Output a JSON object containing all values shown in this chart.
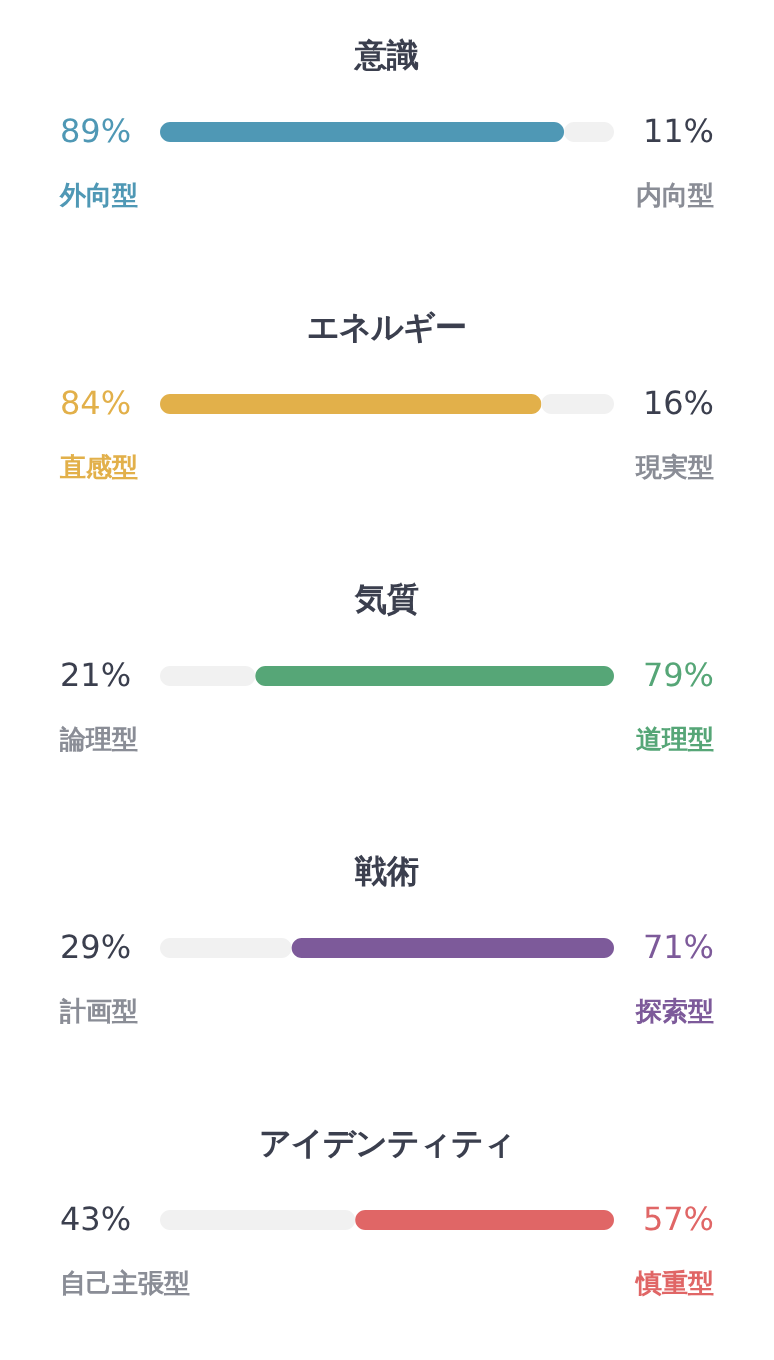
{
  "chart_data": [
    {
      "type": "bar",
      "orientation": "horizontal",
      "stacked": true,
      "title": "意識",
      "categories": [
        null
      ],
      "series": [
        {
          "name": "外向型",
          "color": "#4f98b5",
          "values": [
            89
          ],
          "value_labels": [
            "89%"
          ]
        },
        {
          "name": "内向型",
          "color": "#f1f1f1",
          "values": [
            11
          ],
          "value_labels": [
            "11%"
          ]
        }
      ]
    },
    {
      "type": "bar",
      "orientation": "horizontal",
      "stacked": true,
      "title": "エネルギー",
      "categories": [
        null
      ],
      "series": [
        {
          "name": "直感型",
          "color": "#e2b04a",
          "values": [
            84
          ],
          "value_labels": [
            "84%"
          ]
        },
        {
          "name": "現実型",
          "color": "#f1f1f1",
          "values": [
            16
          ],
          "value_labels": [
            "16%"
          ]
        }
      ]
    },
    {
      "type": "bar",
      "orientation": "horizontal",
      "stacked": true,
      "title": "気質",
      "categories": [
        null
      ],
      "series": [
        {
          "name": "論理型",
          "color": "#f1f1f1",
          "values": [
            21
          ],
          "value_labels": [
            "21%"
          ]
        },
        {
          "name": "道理型",
          "color": "#56a677",
          "values": [
            79
          ],
          "value_labels": [
            "79%"
          ]
        }
      ]
    },
    {
      "type": "bar",
      "orientation": "horizontal",
      "stacked": true,
      "title": "戦術",
      "categories": [
        null
      ],
      "series": [
        {
          "name": "計画型",
          "color": "#f1f1f1",
          "values": [
            29
          ],
          "value_labels": [
            "29%"
          ]
        },
        {
          "name": "探索型",
          "color": "#7d5a9a",
          "values": [
            71
          ],
          "value_labels": [
            "71%"
          ]
        }
      ]
    },
    {
      "type": "bar",
      "orientation": "horizontal",
      "stacked": true,
      "title": "アイデンティティ",
      "categories": [
        null
      ],
      "series": [
        {
          "name": "自己主張型",
          "color": "#f1f1f1",
          "values": [
            43
          ],
          "value_labels": [
            "43%"
          ]
        },
        {
          "name": "慎重型",
          "color": "#e06666",
          "values": [
            57
          ],
          "value_labels": [
            "57%"
          ]
        }
      ]
    }
  ]
}
